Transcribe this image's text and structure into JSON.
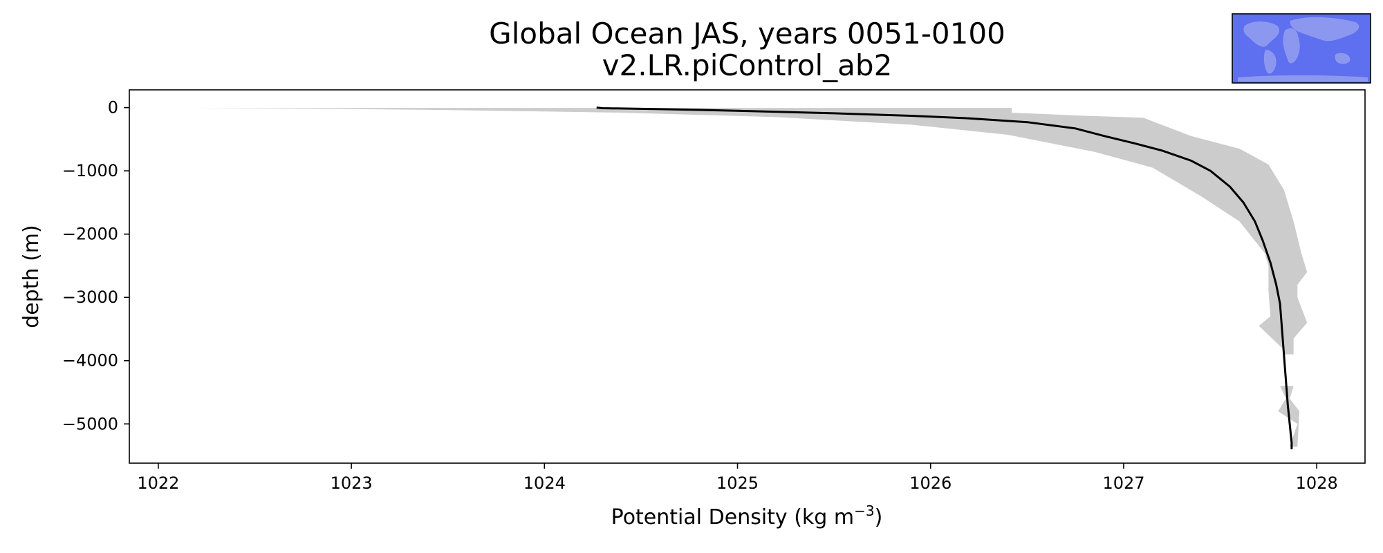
{
  "chart_data": {
    "type": "line",
    "title": "Global Ocean JAS, years 0051-0100",
    "subtitle": "v2.LR.piControl_ab2",
    "xlabel": "Potential Density (kg m",
    "xlabel_sup": "−3",
    "xlabel_close": ")",
    "ylabel": "depth (m)",
    "xlim": [
      1021.85,
      1028.25
    ],
    "ylim": [
      -5620,
      280
    ],
    "xticks": [
      1022,
      1023,
      1024,
      1025,
      1026,
      1027,
      1028
    ],
    "xtick_labels": [
      "1022",
      "1023",
      "1024",
      "1025",
      "1026",
      "1027",
      "1028"
    ],
    "yticks": [
      0,
      -1000,
      -2000,
      -3000,
      -4000,
      -5000
    ],
    "ytick_labels": [
      "0",
      "−1000",
      "−2000",
      "−3000",
      "−4000",
      "−5000"
    ],
    "grid": false,
    "line_color": "#000000",
    "band_color": "#cccccc",
    "mean_profile": {
      "density": [
        1024.27,
        1024.3,
        1024.6,
        1025.0,
        1025.5,
        1025.9,
        1026.2,
        1026.5,
        1026.75,
        1026.9,
        1027.05,
        1027.2,
        1027.35,
        1027.45,
        1027.55,
        1027.62,
        1027.68,
        1027.72,
        1027.76,
        1027.79,
        1027.81,
        1027.82,
        1027.83,
        1027.84,
        1027.85,
        1027.86,
        1027.87,
        1027.87
      ],
      "depth": [
        0,
        -10,
        -25,
        -50,
        -90,
        -130,
        -170,
        -230,
        -330,
        -450,
        -560,
        -680,
        -840,
        -1000,
        -1250,
        -1500,
        -1800,
        -2100,
        -2450,
        -2800,
        -3100,
        -3500,
        -3900,
        -4300,
        -4700,
        -5000,
        -5300,
        -5400
      ]
    },
    "spread_band_upper": {
      "right_density": [
        1026.42,
        1026.42,
        1026.8,
        1027.1,
        1027.35,
        1027.6,
        1027.75,
        1027.83,
        1027.88,
        1027.92,
        1027.95,
        1027.9,
        1027.9,
        1027.95,
        1027.88,
        1027.88
      ],
      "right_depth": [
        -5,
        -80,
        -130,
        -160,
        -450,
        -650,
        -900,
        -1300,
        -1800,
        -2300,
        -2600,
        -2800,
        -3000,
        -3400,
        -3650,
        -3900
      ],
      "left_density": [
        1027.83,
        1027.82,
        1027.7,
        1027.76,
        1027.75,
        1027.75,
        1027.73,
        1027.6,
        1027.4,
        1027.15,
        1026.85,
        1026.4,
        1025.9,
        1025.2,
        1024.4,
        1023.4,
        1022.7,
        1022.18
      ],
      "left_depth": [
        -3900,
        -3800,
        -3450,
        -3300,
        -2900,
        -2500,
        -2300,
        -1800,
        -1400,
        -950,
        -700,
        -430,
        -270,
        -150,
        -80,
        -35,
        -15,
        -5
      ]
    },
    "spread_band_lower": {
      "density": [
        1027.8,
        1027.88,
        1027.86,
        1027.91,
        1027.9,
        1027.86,
        1027.9,
        1027.8,
        1027.84,
        1027.81
      ],
      "depth": [
        -4400,
        -4400,
        -4600,
        -4800,
        -5360,
        -5360,
        -5000,
        -4800,
        -4600,
        -4400
      ]
    },
    "inset_map": {
      "ocean_color": "#5e6fef",
      "land_color": "#8c98f0",
      "border_color": "#000000"
    }
  }
}
